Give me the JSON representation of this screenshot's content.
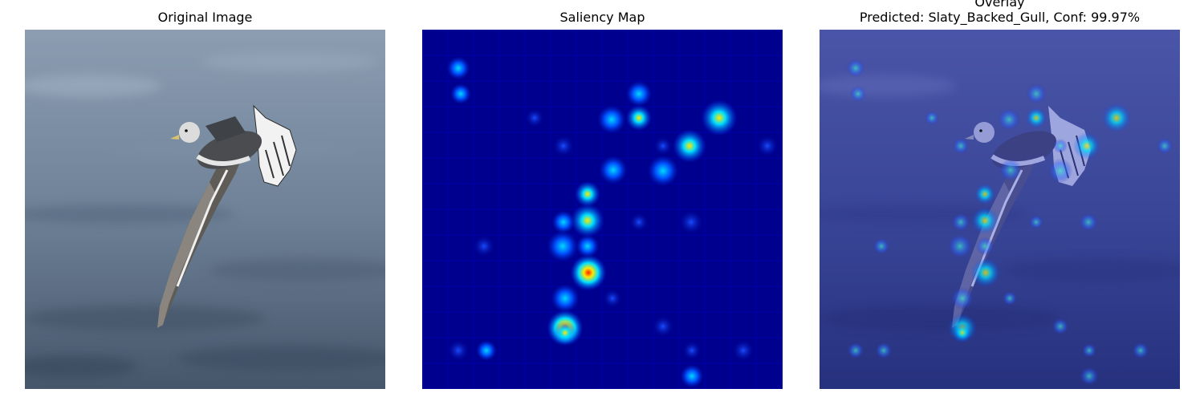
{
  "panels": [
    {
      "title": "Original Image"
    },
    {
      "title": "Saliency Map"
    },
    {
      "title_line1": "Overlay",
      "title_line2": "Predicted: Slaty_Backed_Gull, Conf: 99.97%"
    }
  ],
  "colors": {
    "sea_dark": "#4a5a6e",
    "sea_light": "#8fa0b5",
    "saliency_base": "#00008f",
    "hotspot_cyan": "#00e0ff",
    "hotspot_yellow": "#ffe600",
    "hotspot_red": "#ff2000",
    "overlay_tint": "#2a36a8"
  }
}
